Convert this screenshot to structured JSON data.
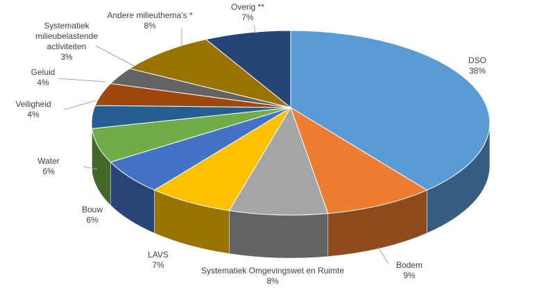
{
  "chart_data": {
    "type": "pie",
    "categories": [
      "DSO",
      "Bodem",
      "Systematiek Omgevingswet en Ruimte",
      "LAVS",
      "Bouw",
      "Water",
      "Veiligheid",
      "Geluid",
      "Systematiek milieubelastende activiteiten",
      "Andere milieuthema's *",
      "Overig **"
    ],
    "values": [
      38,
      9,
      8,
      7,
      6,
      6,
      4,
      4,
      3,
      8,
      7
    ],
    "value_labels": [
      "38%",
      "9%",
      "8%",
      "7%",
      "6%",
      "6%",
      "4%",
      "4%",
      "3%",
      "8%",
      "7%"
    ],
    "colors": [
      "#5b9bd5",
      "#ed7d31",
      "#a5a5a5",
      "#ffc000",
      "#4472c4",
      "#70ad47",
      "#255e91",
      "#9e480e",
      "#636363",
      "#997300",
      "#264478"
    ]
  }
}
